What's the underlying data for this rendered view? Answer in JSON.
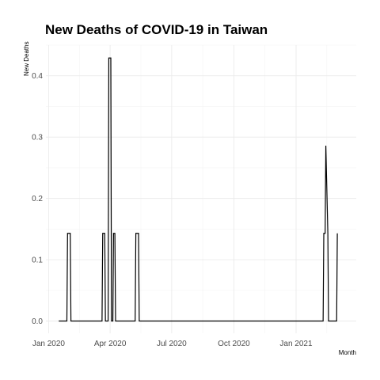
{
  "chart_data": {
    "type": "line",
    "step": true,
    "title": "New Deaths of COVID-19 in Taiwan",
    "xlabel": "Month",
    "ylabel": "New Deaths",
    "x_tick_labels": [
      "Jan 2020",
      "Apr 2020",
      "Jul 2020",
      "Oct 2020",
      "Jan 2021"
    ],
    "x_ticks": [
      "2020-01-01",
      "2020-04-01",
      "2020-07-01",
      "2020-10-01",
      "2021-01-01"
    ],
    "y_ticks": [
      0.0,
      0.1,
      0.2,
      0.3,
      0.4
    ],
    "y_tick_labels": [
      "0.0",
      "0.1",
      "0.2",
      "0.3",
      "0.4"
    ],
    "xlim": [
      "2019-12-28",
      "2021-03-31"
    ],
    "ylim": [
      -0.02,
      0.45
    ],
    "grid": true,
    "series": [
      {
        "x": [
          "2020-01-16",
          "2020-01-28",
          "2020-01-29",
          "2020-02-02",
          "2020-02-03",
          "2020-03-20",
          "2020-03-21",
          "2020-03-24",
          "2020-03-25",
          "2020-03-29",
          "2020-03-30",
          "2020-04-02",
          "2020-04-03",
          "2020-04-05",
          "2020-04-06",
          "2020-04-08",
          "2020-04-09",
          "2020-04-11",
          "2020-04-12",
          "2020-05-08",
          "2020-05-09",
          "2020-05-13",
          "2020-05-14",
          "2021-02-10",
          "2021-02-11",
          "2021-02-13",
          "2021-02-14",
          "2021-02-17",
          "2021-02-18",
          "2021-03-02",
          "2021-03-03"
        ],
        "y": [
          0,
          0,
          0.143,
          0.143,
          0,
          0,
          0.143,
          0.143,
          0,
          0,
          0.429,
          0.429,
          0,
          0,
          0.143,
          0.143,
          0,
          0,
          0,
          0,
          0.143,
          0.143,
          0,
          0,
          0.143,
          0.143,
          0.286,
          0.143,
          0,
          0,
          0.143
        ]
      }
    ]
  }
}
